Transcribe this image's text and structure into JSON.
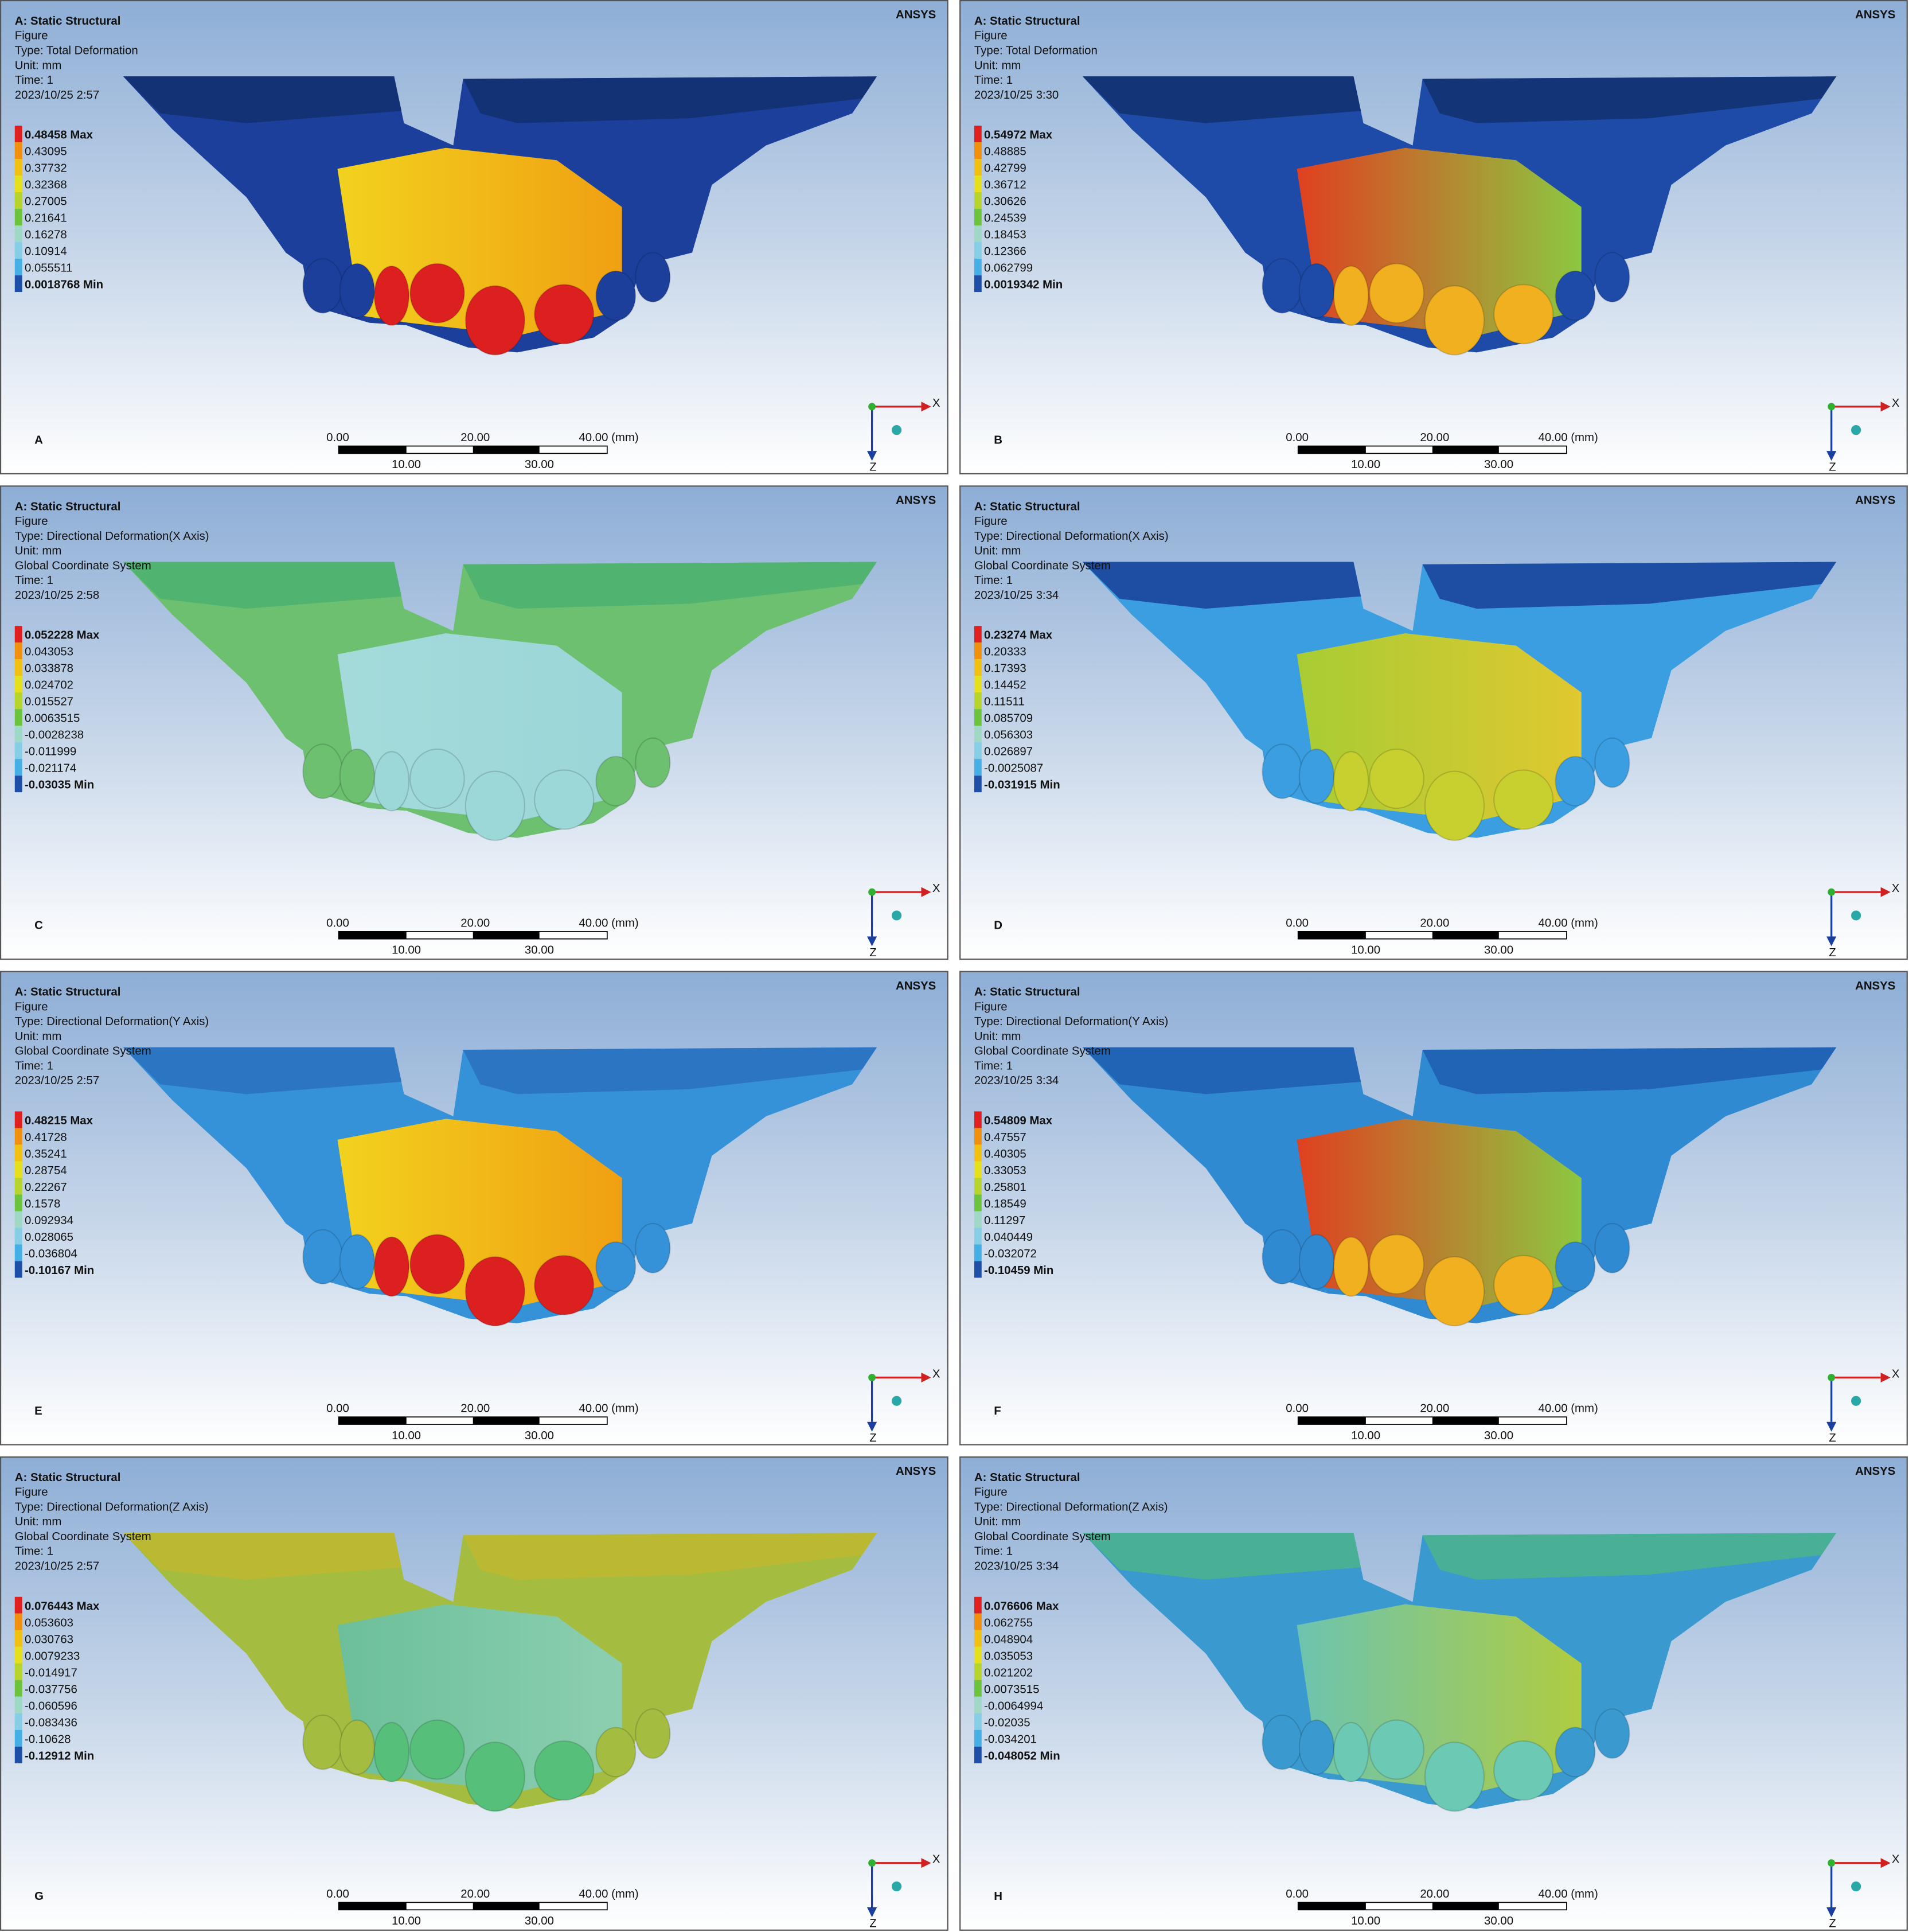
{
  "panels": [
    {
      "label": "A",
      "title": "A: Static Structural",
      "lines": [
        "Figure",
        "Type: Total Deformation",
        "Unit: mm",
        "Time: 1",
        "2023/10/25 2:57"
      ],
      "legend": [
        "0.48458 Max",
        "0.43095",
        "0.37732",
        "0.32368",
        "0.27005",
        "0.21641",
        "0.16278",
        "0.10914",
        "0.055511",
        "0.0018768 Min"
      ],
      "logo": "ANSYS",
      "scale_top": [
        "0.00",
        "20.00",
        "40.00 (mm)"
      ],
      "scale_bottom": [
        "10.00",
        "30.00"
      ],
      "axes": [
        "X",
        "Z"
      ]
    },
    {
      "label": "B",
      "title": "A: Static Structural",
      "lines": [
        "Figure",
        "Type: Total Deformation",
        "Unit: mm",
        "Time: 1",
        "2023/10/25 3:30"
      ],
      "legend": [
        "0.54972 Max",
        "0.48885",
        "0.42799",
        "0.36712",
        "0.30626",
        "0.24539",
        "0.18453",
        "0.12366",
        "0.062799",
        "0.0019342 Min"
      ],
      "logo": "ANSYS",
      "scale_top": [
        "0.00",
        "20.00",
        "40.00 (mm)"
      ],
      "scale_bottom": [
        "10.00",
        "30.00"
      ],
      "axes": [
        "X",
        "Z"
      ]
    },
    {
      "label": "C",
      "title": "A: Static Structural",
      "lines": [
        "Figure",
        "Type: Directional Deformation(X Axis)",
        "Unit: mm",
        "Global Coordinate System",
        "Time: 1",
        "2023/10/25 2:58"
      ],
      "legend": [
        "0.052228 Max",
        "0.043053",
        "0.033878",
        "0.024702",
        "0.015527",
        "0.0063515",
        "-0.0028238",
        "-0.011999",
        "-0.021174",
        "-0.03035 Min"
      ],
      "logo": "ANSYS",
      "scale_top": [
        "0.00",
        "20.00",
        "40.00 (mm)"
      ],
      "scale_bottom": [
        "10.00",
        "30.00"
      ],
      "axes": [
        "X",
        "Z"
      ]
    },
    {
      "label": "D",
      "title": "A: Static Structural",
      "lines": [
        "Figure",
        "Type: Directional Deformation(X Axis)",
        "Unit: mm",
        "Global Coordinate System",
        "Time: 1",
        "2023/10/25 3:34"
      ],
      "legend": [
        "0.23274 Max",
        "0.20333",
        "0.17393",
        "0.14452",
        "0.11511",
        "0.085709",
        "0.056303",
        "0.026897",
        "-0.0025087",
        "-0.031915 Min"
      ],
      "logo": "ANSYS",
      "scale_top": [
        "0.00",
        "20.00",
        "40.00 (mm)"
      ],
      "scale_bottom": [
        "10.00",
        "30.00"
      ],
      "axes": [
        "X",
        "Z"
      ]
    },
    {
      "label": "E",
      "title": "A: Static Structural",
      "lines": [
        "Figure",
        "Type: Directional Deformation(Y Axis)",
        "Unit: mm",
        "Global Coordinate System",
        "Time: 1",
        "2023/10/25 2:57"
      ],
      "legend": [
        "0.48215 Max",
        "0.41728",
        "0.35241",
        "0.28754",
        "0.22267",
        "0.1578",
        "0.092934",
        "0.028065",
        "-0.036804",
        "-0.10167 Min"
      ],
      "logo": "ANSYS",
      "scale_top": [
        "0.00",
        "20.00",
        "40.00 (mm)"
      ],
      "scale_bottom": [
        "10.00",
        "30.00"
      ],
      "axes": [
        "X",
        "Z"
      ]
    },
    {
      "label": "F",
      "title": "A: Static Structural",
      "lines": [
        "Figure",
        "Type: Directional Deformation(Y Axis)",
        "Unit: mm",
        "Global Coordinate System",
        "Time: 1",
        "2023/10/25 3:34"
      ],
      "legend": [
        "0.54809 Max",
        "0.47557",
        "0.40305",
        "0.33053",
        "0.25801",
        "0.18549",
        "0.11297",
        "0.040449",
        "-0.032072",
        "-0.10459 Min"
      ],
      "logo": "ANSYS",
      "scale_top": [
        "0.00",
        "20.00",
        "40.00 (mm)"
      ],
      "scale_bottom": [
        "10.00",
        "30.00"
      ],
      "axes": [
        "X",
        "Z"
      ]
    },
    {
      "label": "G",
      "title": "A: Static Structural",
      "lines": [
        "Figure",
        "Type: Directional Deformation(Z Axis)",
        "Unit: mm",
        "Global Coordinate System",
        "Time: 1",
        "2023/10/25 2:57"
      ],
      "legend": [
        "0.076443 Max",
        "0.053603",
        "0.030763",
        "0.0079233",
        "-0.014917",
        "-0.037756",
        "-0.060596",
        "-0.083436",
        "-0.10628",
        "-0.12912 Min"
      ],
      "logo": "ANSYS",
      "scale_top": [
        "0.00",
        "20.00",
        "40.00 (mm)"
      ],
      "scale_bottom": [
        "10.00",
        "30.00"
      ],
      "axes": [
        "X",
        "Z"
      ]
    },
    {
      "label": "H",
      "title": "A: Static Structural",
      "lines": [
        "Figure",
        "Type: Directional Deformation(Z Axis)",
        "Unit: mm",
        "Global Coordinate System",
        "Time: 1",
        "2023/10/25 3:34"
      ],
      "legend": [
        "0.076606 Max",
        "0.062755",
        "0.048904",
        "0.035053",
        "0.021202",
        "0.0073515",
        "-0.0064994",
        "-0.02035",
        "-0.034201",
        "-0.048052 Min"
      ],
      "logo": "ANSYS",
      "scale_top": [
        "0.00",
        "20.00",
        "40.00 (mm)"
      ],
      "scale_bottom": [
        "10.00",
        "30.00"
      ],
      "axes": [
        "X",
        "Z"
      ]
    }
  ]
}
